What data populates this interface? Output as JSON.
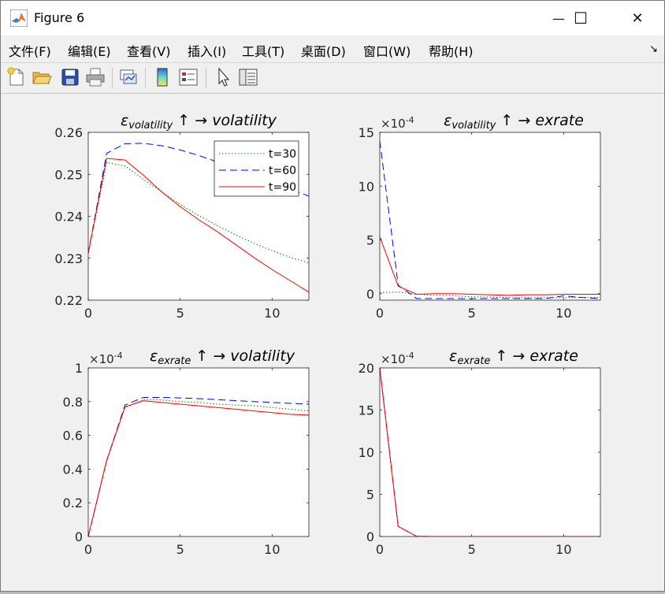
{
  "window": {
    "title": "Figure 6",
    "minimize_glyph": "—",
    "maximize_glyph": "☐",
    "close_glyph": "✕"
  },
  "menu": [
    "文件(F)",
    "编辑(E)",
    "查看(V)",
    "插入(I)",
    "工具(T)",
    "桌面(D)",
    "窗口(W)",
    "帮助(H)"
  ],
  "toolbar": {
    "icons": [
      "new-figure-icon",
      "open-file-icon",
      "save-icon",
      "print-icon",
      "link-plot-icon",
      "insert-colorbar-icon",
      "insert-legend-icon",
      "edit-plot-arrow-icon",
      "property-inspector-icon"
    ]
  },
  "colors": {
    "t30": "#008000",
    "t60": "#0000ff",
    "t90": "#ff0000"
  },
  "chart_data": [
    {
      "type": "line",
      "title_eps": "ε",
      "title_sub": "volatility",
      "title_rest": "↑ →  volatility",
      "xlim": [
        0,
        12
      ],
      "ylim": [
        0.22,
        0.26
      ],
      "xticks": [
        0,
        5,
        10
      ],
      "yticks": [
        0.22,
        0.23,
        0.24,
        0.25,
        0.26
      ],
      "ytick_labels": [
        "0.22",
        "0.23",
        "0.24",
        "0.25",
        "0.26"
      ],
      "exponent": "",
      "legend": {
        "placement": "top-right",
        "entries": [
          "t=30",
          "t=60",
          "t=90"
        ]
      },
      "x": [
        0,
        1,
        2,
        3,
        4,
        5,
        6,
        7,
        8,
        9,
        10,
        11,
        12
      ],
      "series": [
        {
          "name": "t=30",
          "style": "dotted",
          "color": "#008000",
          "values": [
            0.2312,
            0.2528,
            0.252,
            0.2488,
            0.2458,
            0.2428,
            0.2402,
            0.2378,
            0.2356,
            0.2336,
            0.2318,
            0.2302,
            0.2289
          ]
        },
        {
          "name": "t=60",
          "style": "dashed",
          "color": "#0000ff",
          "values": [
            0.2312,
            0.255,
            0.2573,
            0.2574,
            0.2568,
            0.2558,
            0.2545,
            0.253,
            0.2515,
            0.2498,
            0.2482,
            0.2465,
            0.2448
          ]
        },
        {
          "name": "t=90",
          "style": "solid",
          "color": "#ff0000",
          "values": [
            0.2312,
            0.2538,
            0.2534,
            0.2498,
            0.2458,
            0.2423,
            0.2392,
            0.2364,
            0.2333,
            0.2302,
            0.2273,
            0.2246,
            0.2219
          ]
        }
      ]
    },
    {
      "type": "line",
      "title_eps": "ε",
      "title_sub": "volatility",
      "title_rest": "↑ →  exrate",
      "xlim": [
        0,
        12
      ],
      "ylim": [
        -0.6,
        15
      ],
      "xticks": [
        0,
        5,
        10
      ],
      "yticks": [
        0,
        5,
        10,
        15
      ],
      "ytick_labels": [
        "0",
        "5",
        "10",
        "15"
      ],
      "exponent": "-4",
      "x": [
        0,
        1,
        2,
        3,
        4,
        5,
        6,
        7,
        8,
        9,
        10,
        11,
        12
      ],
      "series": [
        {
          "name": "t=30",
          "style": "dotted",
          "color": "#008000",
          "values": [
            0.1,
            0.15,
            -0.05,
            -0.15,
            -0.2,
            -0.28,
            -0.32,
            -0.35,
            -0.38,
            -0.38,
            -0.36,
            -0.35,
            -0.35
          ]
        },
        {
          "name": "t=60",
          "style": "dashed",
          "color": "#0000ff",
          "values": [
            14.2,
            0.8,
            -0.45,
            -0.45,
            -0.45,
            -0.45,
            -0.45,
            -0.45,
            -0.45,
            -0.45,
            -0.2,
            -0.35,
            -0.45
          ]
        },
        {
          "name": "t=90",
          "style": "solid",
          "color": "#ff0000",
          "values": [
            5.3,
            0.7,
            -0.05,
            0.0,
            0.0,
            -0.05,
            -0.1,
            -0.15,
            -0.1,
            -0.1,
            -0.05,
            -0.05,
            -0.05
          ]
        }
      ]
    },
    {
      "type": "line",
      "title_eps": "ε",
      "title_sub": "exrate",
      "title_rest": "↑ →  volatility",
      "xlim": [
        0,
        12
      ],
      "ylim": [
        0,
        1
      ],
      "xticks": [
        0,
        5,
        10
      ],
      "yticks": [
        0,
        0.2,
        0.4,
        0.6,
        0.8,
        1
      ],
      "ytick_labels": [
        "0",
        "0.2",
        "0.4",
        "0.6",
        "0.8",
        "1"
      ],
      "exponent": "-4",
      "x": [
        0,
        1,
        2,
        3,
        4,
        5,
        6,
        7,
        8,
        9,
        10,
        11,
        12
      ],
      "series": [
        {
          "name": "t=30",
          "style": "dotted",
          "color": "#008000",
          "values": [
            0.0,
            0.45,
            0.765,
            0.81,
            0.81,
            0.8,
            0.795,
            0.785,
            0.78,
            0.775,
            0.765,
            0.755,
            0.745
          ]
        },
        {
          "name": "t=60",
          "style": "dashed",
          "color": "#0000ff",
          "values": [
            0.0,
            0.45,
            0.78,
            0.825,
            0.825,
            0.822,
            0.818,
            0.812,
            0.806,
            0.8,
            0.795,
            0.79,
            0.785
          ]
        },
        {
          "name": "t=90",
          "style": "solid",
          "color": "#ff0000",
          "values": [
            0.0,
            0.45,
            0.77,
            0.805,
            0.795,
            0.785,
            0.775,
            0.765,
            0.755,
            0.745,
            0.735,
            0.725,
            0.72
          ]
        }
      ]
    },
    {
      "type": "line",
      "title_eps": "ε",
      "title_sub": "exrate",
      "title_rest": "↑ →  exrate",
      "xlim": [
        0,
        12
      ],
      "ylim": [
        0,
        20
      ],
      "xticks": [
        0,
        5,
        10
      ],
      "yticks": [
        0,
        5,
        10,
        15,
        20
      ],
      "ytick_labels": [
        "0",
        "5",
        "10",
        "15",
        "20"
      ],
      "exponent": "-4",
      "x": [
        0,
        1,
        2,
        3,
        4,
        5,
        6,
        7,
        8,
        9,
        10,
        11,
        12
      ],
      "series": [
        {
          "name": "t=30",
          "style": "dotted",
          "color": "#008000",
          "values": [
            20,
            1.2,
            0.02,
            0.0,
            0.0,
            0.0,
            0.0,
            0.0,
            0.0,
            0.0,
            0.0,
            0.0,
            0.0
          ]
        },
        {
          "name": "t=60",
          "style": "dashed",
          "color": "#0000ff",
          "values": [
            20,
            1.2,
            0.02,
            0.0,
            0.0,
            0.0,
            0.0,
            0.0,
            0.0,
            0.0,
            0.0,
            0.0,
            0.0
          ]
        },
        {
          "name": "t=90",
          "style": "solid",
          "color": "#ff0000",
          "values": [
            20,
            1.2,
            0.02,
            0.0,
            0.0,
            0.0,
            0.0,
            0.0,
            0.0,
            0.0,
            0.0,
            0.0,
            0.0
          ]
        }
      ]
    }
  ]
}
